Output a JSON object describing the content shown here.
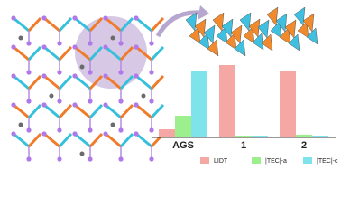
{
  "chart_data": {
    "type": "bar",
    "categories": [
      "AGS",
      "1",
      "2"
    ],
    "series": [
      {
        "name": "LIDT",
        "color": "#f4a7a3",
        "values": [
          9,
          80,
          74
        ]
      },
      {
        "name": "|TEC|-a",
        "color": "#9cef8c",
        "values": [
          24,
          2,
          3
        ]
      },
      {
        "name": "|TEC|-c",
        "color": "#7ee3ea",
        "values": [
          74,
          2,
          2
        ]
      }
    ],
    "grid": false
  }
}
